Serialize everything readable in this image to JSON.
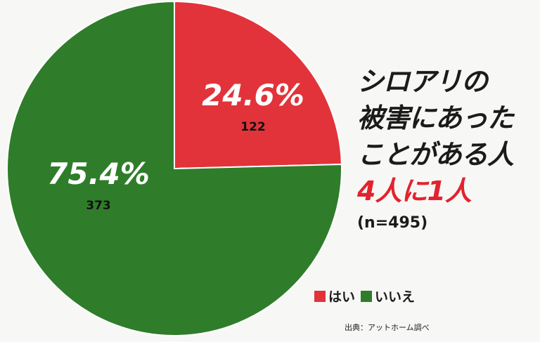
{
  "chart_data": {
    "type": "pie",
    "slices": [
      {
        "label": "はい",
        "percent_label": "24.6%",
        "count": 122,
        "value": 24.6,
        "color": "#e2333a"
      },
      {
        "label": "いいえ",
        "percent_label": "75.4%",
        "count": 373,
        "value": 75.4,
        "color": "#2f7d2a"
      }
    ],
    "legend_position": "bottom-right"
  },
  "headline": {
    "line1": "シロアリの",
    "line2": "被害にあった",
    "line3": "ことがある人",
    "line4": "4人に1人",
    "n_label": "(n=495)"
  },
  "legend": {
    "yes": "はい",
    "no": "いいえ"
  },
  "source": "出典：アットホーム調べ"
}
